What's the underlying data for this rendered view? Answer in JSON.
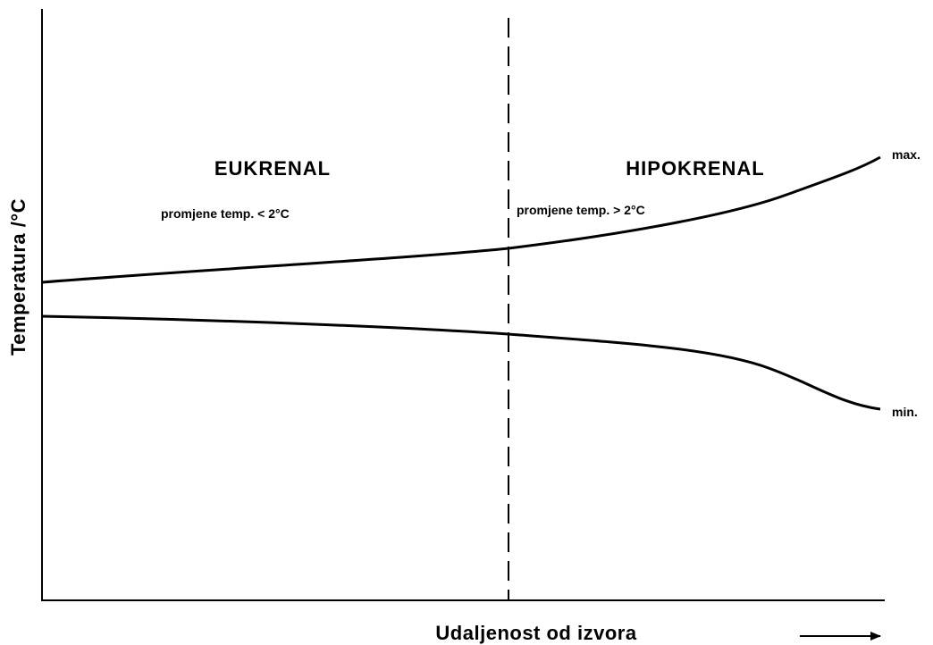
{
  "axes": {
    "y_label": "Temperatura /°C",
    "x_label": "Udaljenost od izvora"
  },
  "zones": [
    {
      "title": "EUKRENAL",
      "note": "promjene temp. < 2°C"
    },
    {
      "title": "HIPOKRENAL",
      "note": "promjene temp. > 2°C"
    }
  ],
  "curves": {
    "max_label": "max.",
    "min_label": "min."
  }
}
